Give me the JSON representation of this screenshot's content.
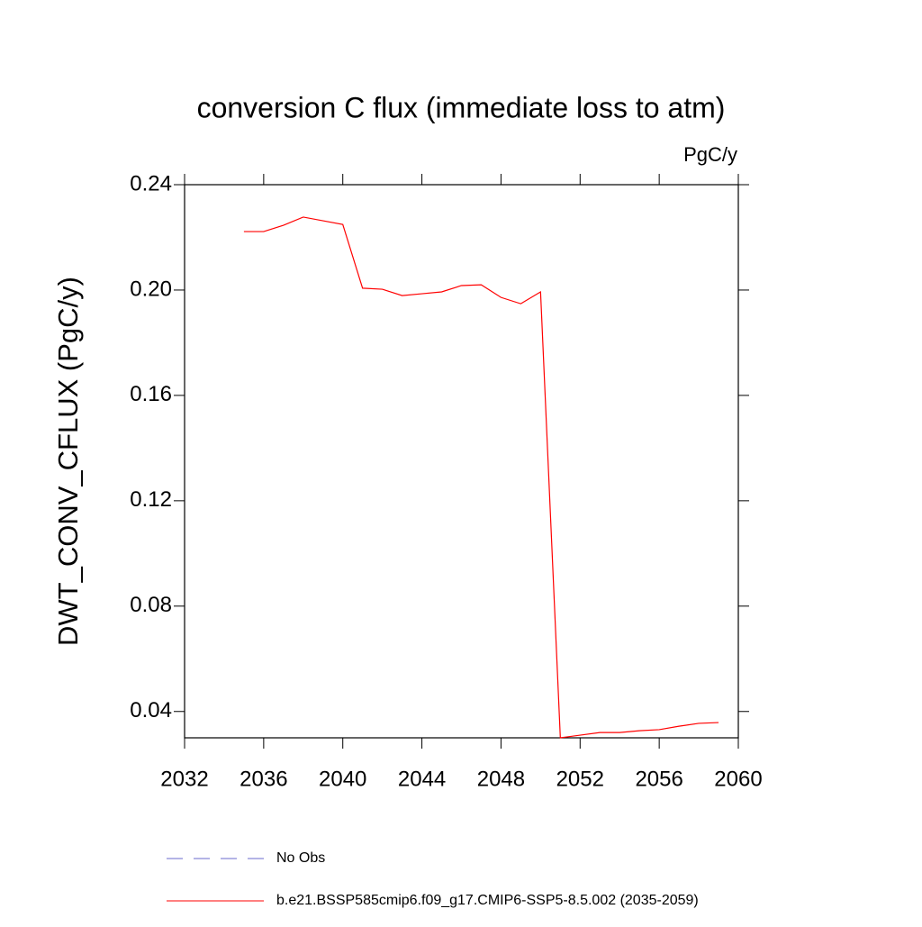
{
  "chart_data": {
    "type": "line",
    "title": "conversion C flux (immediate loss to atm)",
    "units": "PgC/y",
    "ylabel": "DWT_CONV_CFLUX  (PgC/y)",
    "x": [
      2035,
      2036,
      2037,
      2038,
      2039,
      2040,
      2041,
      2042,
      2043,
      2044,
      2045,
      2046,
      2047,
      2048,
      2049,
      2050,
      2051,
      2052,
      2053,
      2054,
      2055,
      2056,
      2057,
      2058,
      2059
    ],
    "series": [
      {
        "name": "No Obs",
        "color": "#6a6acd",
        "dashed": true,
        "values": [
          null,
          null,
          null,
          null,
          null,
          null,
          null,
          null,
          null,
          null,
          null,
          null,
          null,
          null,
          null,
          null,
          null,
          null,
          null,
          null,
          null,
          null,
          null,
          null,
          null
        ]
      },
      {
        "name": "b.e21.BSSP585cmip6.f09_g17.CMIP6-SSP5-8.5.002 (2035-2059)",
        "color": "#ff0000",
        "dashed": false,
        "values": [
          0.2222,
          0.2222,
          0.2246,
          0.2277,
          0.2263,
          0.2249,
          0.2007,
          0.2003,
          0.1979,
          0.1986,
          0.1993,
          0.2017,
          0.202,
          0.1972,
          0.1948,
          0.1993,
          0.03,
          0.031,
          0.032,
          0.032,
          0.0327,
          0.0331,
          0.0344,
          0.0355,
          0.0358
        ]
      }
    ],
    "xlim": [
      2032,
      2060
    ],
    "xticks": [
      2032,
      2036,
      2040,
      2044,
      2048,
      2052,
      2056,
      2060
    ],
    "ylim": [
      0.03,
      0.24
    ],
    "yticks": [
      0.04,
      0.08,
      0.12,
      0.16,
      {
        "value": 0.2,
        "label": "0.20"
      },
      0.24
    ],
    "grid": false
  }
}
